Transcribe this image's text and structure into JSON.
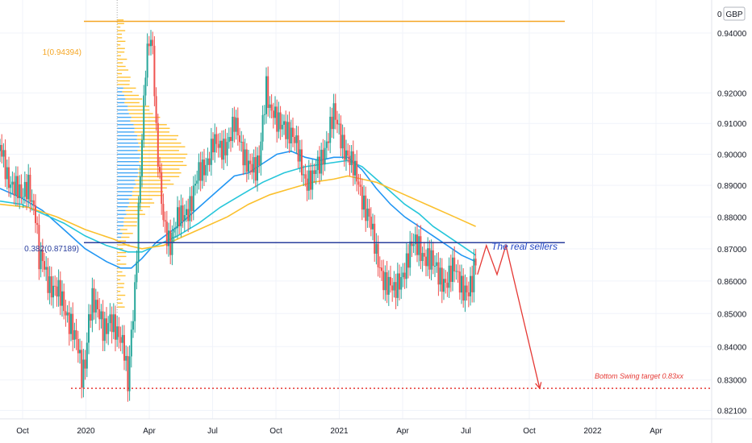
{
  "chart_data": {
    "type": "candlestick",
    "currency": "GBP",
    "currency_prefix": "0",
    "ylim": [
      0.8185,
      0.9512
    ],
    "y_ticks": [
      "0.94000",
      "0.92000",
      "0.91000",
      "0.90000",
      "0.89000",
      "0.88000",
      "0.87000",
      "0.86000",
      "0.85000",
      "0.84000",
      "0.83000",
      "0.82100"
    ],
    "x_ticks": [
      "Oct",
      "2020",
      "Apr",
      "Jul",
      "Oct",
      "2021",
      "Apr",
      "Jul",
      "Oct",
      "2022",
      "Apr"
    ],
    "grid": true,
    "annotations": {
      "fib_top": "1(0.94394)",
      "fib_382": "0.382(0.87189)",
      "sellers": "The real sellers",
      "target": "Bottom Swing target 0.83xx"
    },
    "levels": {
      "fib_top": 0.94394,
      "fib_382": 0.87189,
      "target": 0.8275
    },
    "price_path": [
      [
        0,
        0.901
      ],
      [
        2,
        0.894
      ],
      [
        4,
        0.89
      ],
      [
        6,
        0.885
      ],
      [
        8,
        0.892
      ],
      [
        10,
        0.88
      ],
      [
        11,
        0.865
      ],
      [
        12,
        0.866
      ],
      [
        14,
        0.86
      ],
      [
        16,
        0.856
      ],
      [
        18,
        0.852
      ],
      [
        20,
        0.848
      ],
      [
        22,
        0.838
      ],
      [
        23,
        0.83
      ],
      [
        24,
        0.836
      ],
      [
        25,
        0.85
      ],
      [
        26,
        0.855
      ],
      [
        27,
        0.851
      ],
      [
        29,
        0.845
      ],
      [
        31,
        0.85
      ],
      [
        33,
        0.842
      ],
      [
        35,
        0.84
      ],
      [
        36,
        0.831
      ],
      [
        37,
        0.845
      ],
      [
        38,
        0.855
      ],
      [
        39,
        0.88
      ],
      [
        40,
        0.905
      ],
      [
        41,
        0.93
      ],
      [
        42,
        0.94
      ],
      [
        43,
        0.935
      ],
      [
        44,
        0.905
      ],
      [
        45,
        0.89
      ],
      [
        46,
        0.88
      ],
      [
        48,
        0.872
      ],
      [
        50,
        0.878
      ],
      [
        52,
        0.882
      ],
      [
        54,
        0.885
      ],
      [
        56,
        0.893
      ],
      [
        58,
        0.898
      ],
      [
        60,
        0.903
      ],
      [
        62,
        0.901
      ],
      [
        64,
        0.905
      ],
      [
        66,
        0.909
      ],
      [
        68,
        0.902
      ],
      [
        70,
        0.898
      ],
      [
        72,
        0.893
      ],
      [
        73,
        0.897
      ],
      [
        74,
        0.912
      ],
      [
        75,
        0.924
      ],
      [
        76,
        0.915
      ],
      [
        78,
        0.909
      ],
      [
        80,
        0.911
      ],
      [
        82,
        0.906
      ],
      [
        84,
        0.9
      ],
      [
        86,
        0.893
      ],
      [
        88,
        0.891
      ],
      [
        90,
        0.897
      ],
      [
        92,
        0.905
      ],
      [
        94,
        0.912
      ],
      [
        96,
        0.906
      ],
      [
        98,
        0.9
      ],
      [
        100,
        0.893
      ],
      [
        102,
        0.887
      ],
      [
        104,
        0.88
      ],
      [
        105,
        0.873
      ],
      [
        106,
        0.867
      ],
      [
        108,
        0.862
      ],
      [
        110,
        0.858
      ],
      [
        111,
        0.855
      ],
      [
        113,
        0.862
      ],
      [
        114,
        0.865
      ],
      [
        116,
        0.87
      ],
      [
        118,
        0.871
      ],
      [
        120,
        0.868
      ],
      [
        122,
        0.864
      ],
      [
        124,
        0.862
      ],
      [
        126,
        0.86
      ],
      [
        128,
        0.863
      ],
      [
        130,
        0.86
      ],
      [
        132,
        0.856
      ],
      [
        133,
        0.858
      ],
      [
        134,
        0.866
      ]
    ],
    "moving_averages": [
      {
        "color": "#2196f3",
        "points": [
          [
            0,
            0.889
          ],
          [
            6,
            0.886
          ],
          [
            12,
            0.882
          ],
          [
            18,
            0.876
          ],
          [
            24,
            0.87
          ],
          [
            30,
            0.866
          ],
          [
            34,
            0.864
          ],
          [
            37,
            0.864
          ],
          [
            40,
            0.867
          ],
          [
            44,
            0.872
          ],
          [
            50,
            0.877
          ],
          [
            56,
            0.883
          ],
          [
            62,
            0.889
          ],
          [
            66,
            0.893
          ],
          [
            70,
            0.894
          ],
          [
            74,
            0.897
          ],
          [
            78,
            0.9
          ],
          [
            82,
            0.901
          ],
          [
            86,
            0.899
          ],
          [
            90,
            0.898
          ],
          [
            94,
            0.899
          ],
          [
            98,
            0.899
          ],
          [
            102,
            0.895
          ],
          [
            106,
            0.889
          ],
          [
            110,
            0.884
          ],
          [
            114,
            0.88
          ],
          [
            118,
            0.877
          ],
          [
            122,
            0.874
          ],
          [
            126,
            0.871
          ],
          [
            130,
            0.868
          ],
          [
            134,
            0.866
          ]
        ]
      },
      {
        "color": "#26c6da",
        "points": [
          [
            0,
            0.885
          ],
          [
            6,
            0.884
          ],
          [
            12,
            0.881
          ],
          [
            18,
            0.878
          ],
          [
            24,
            0.874
          ],
          [
            30,
            0.871
          ],
          [
            36,
            0.869
          ],
          [
            40,
            0.869
          ],
          [
            44,
            0.871
          ],
          [
            50,
            0.874
          ],
          [
            56,
            0.878
          ],
          [
            62,
            0.883
          ],
          [
            68,
            0.887
          ],
          [
            74,
            0.891
          ],
          [
            80,
            0.894
          ],
          [
            86,
            0.896
          ],
          [
            92,
            0.897
          ],
          [
            98,
            0.898
          ],
          [
            102,
            0.896
          ],
          [
            106,
            0.892
          ],
          [
            110,
            0.888
          ],
          [
            114,
            0.884
          ],
          [
            118,
            0.881
          ],
          [
            122,
            0.877
          ],
          [
            126,
            0.874
          ],
          [
            130,
            0.871
          ],
          [
            134,
            0.868
          ]
        ]
      },
      {
        "color": "#fbc02d",
        "points": [
          [
            0,
            0.884
          ],
          [
            8,
            0.883
          ],
          [
            16,
            0.88
          ],
          [
            24,
            0.876
          ],
          [
            32,
            0.873
          ],
          [
            36,
            0.871
          ],
          [
            40,
            0.87
          ],
          [
            46,
            0.871
          ],
          [
            52,
            0.874
          ],
          [
            58,
            0.877
          ],
          [
            64,
            0.88
          ],
          [
            70,
            0.884
          ],
          [
            76,
            0.887
          ],
          [
            82,
            0.889
          ],
          [
            88,
            0.891
          ],
          [
            94,
            0.892
          ],
          [
            98,
            0.893
          ],
          [
            102,
            0.892
          ],
          [
            106,
            0.891
          ],
          [
            110,
            0.889
          ],
          [
            114,
            0.887
          ],
          [
            118,
            0.885
          ],
          [
            122,
            0.883
          ],
          [
            126,
            0.881
          ],
          [
            130,
            0.879
          ],
          [
            134,
            0.877
          ]
        ]
      }
    ],
    "projection": [
      [
        134.5,
        0.862
      ],
      [
        137,
        0.871
      ],
      [
        140,
        0.862
      ],
      [
        142.5,
        0.871
      ],
      [
        152,
        0.8275
      ]
    ]
  }
}
